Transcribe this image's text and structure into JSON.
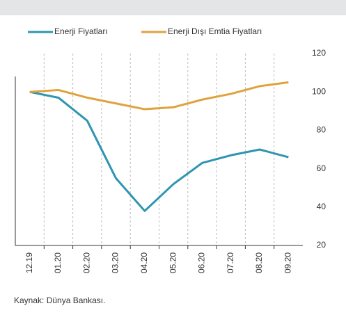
{
  "chart_data": {
    "type": "line",
    "categories": [
      "12.19",
      "01.20",
      "02.20",
      "03.20",
      "04.20",
      "05.20",
      "06.20",
      "07.20",
      "08.20",
      "09.20"
    ],
    "series": [
      {
        "name": "Enerji Fiyatları",
        "color": "#2e95b0",
        "values": [
          100,
          97,
          85,
          55,
          38,
          52,
          63,
          67,
          70,
          66
        ]
      },
      {
        "name": "Enerji Dışı Emtia Fiyatları",
        "color": "#e0a23c",
        "values": [
          100,
          101,
          97,
          94,
          91,
          92,
          96,
          99,
          103,
          105
        ]
      }
    ],
    "ylim": [
      20,
      120
    ],
    "yticks": [
      20,
      40,
      60,
      80,
      100,
      120
    ],
    "source": "Kaynak: Dünya Bankası."
  }
}
